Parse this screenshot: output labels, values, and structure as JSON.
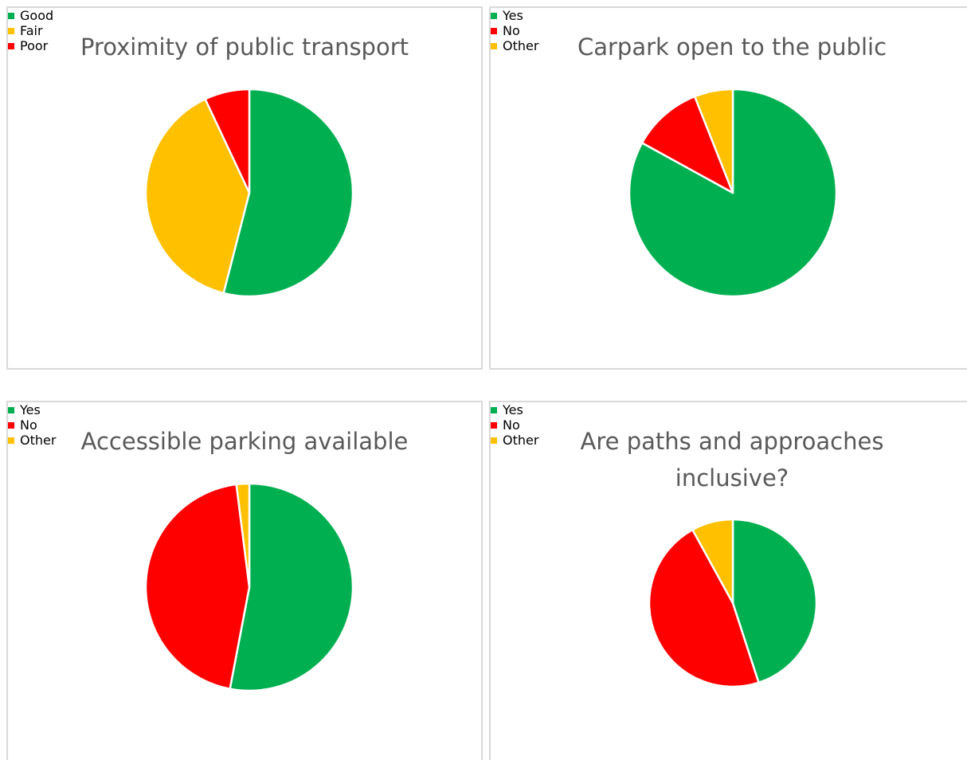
{
  "chart_data": [
    {
      "type": "pie",
      "title": "Proximity of public transport",
      "categories": [
        "Good",
        "Fair",
        "Poor"
      ],
      "values": [
        54,
        39,
        7
      ],
      "colors": [
        "#00b050",
        "#ffc000",
        "#ff0000"
      ],
      "legend": "bottom"
    },
    {
      "type": "pie",
      "title": "Carpark open to the public",
      "categories": [
        "Yes",
        "No",
        "Other"
      ],
      "values": [
        83,
        11,
        6
      ],
      "colors": [
        "#00b050",
        "#ff0000",
        "#ffc000"
      ],
      "legend": "bottom"
    },
    {
      "type": "pie",
      "title": "Accessible parking available",
      "categories": [
        "Yes",
        "No",
        "Other"
      ],
      "values": [
        53,
        45,
        2
      ],
      "colors": [
        "#00b050",
        "#ff0000",
        "#ffc000"
      ],
      "legend": "bottom"
    },
    {
      "type": "pie",
      "title": "Are paths and approaches inclusive?",
      "categories": [
        "Yes",
        "No",
        "Other"
      ],
      "values": [
        45,
        47,
        8
      ],
      "colors": [
        "#00b050",
        "#ff0000",
        "#ffc000"
      ],
      "legend": "bottom"
    }
  ]
}
